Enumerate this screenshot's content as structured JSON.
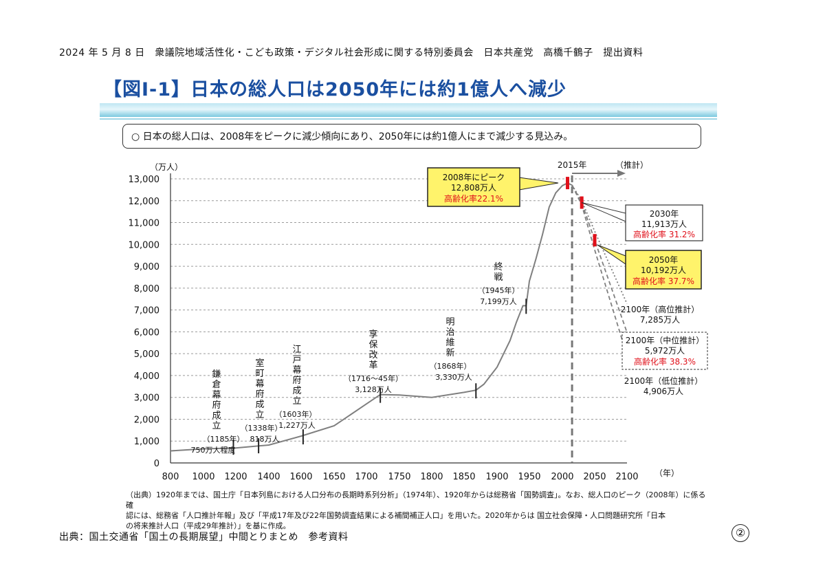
{
  "header": "2024 年 5 月 8 日　衆議院地域活性化・こども政策・デジタル社会形成に関する特別委員会　日本共産党　高橋千鶴子　提出資料",
  "title": "【図Ⅰ-1】日本の総人口は2050年には約1億人へ減少",
  "summary": "○ 日本の総人口は、2008年をピークに減少傾向にあり、2050年には約1億人にまで減少する見込み。",
  "source_note": [
    "（出典）1920年までは、国土庁「日本列島における人口分布の長期時系列分析」（1974年）、1920年からは総務省「国勢調査」。なお、総人口のピーク（2008年）に係る確",
    "認には、総務省「人口推計年報」及び「平成17年及び22年国勢調査結果による補間補正人口」を用いた。2020年からは 国立社会保障・人口問題研究所「日本",
    "の将来推計人口（平成29年推計）」を基に作成。"
  ],
  "footer": "出典：国土交通省「国土の長期展望」中間とりまとめ　参考資料",
  "page_number": "②",
  "chart_data": {
    "type": "line",
    "title": "",
    "ylabel": "（万人）",
    "xlabel": "（年）",
    "xlim": [
      800,
      2100
    ],
    "ylim": [
      0,
      13000
    ],
    "x_ticks": [
      800,
      1000,
      1200,
      1400,
      1600,
      1650,
      1700,
      1750,
      1800,
      1850,
      1900,
      1950,
      2000,
      2050,
      2100
    ],
    "x_tick_labels": [
      "800",
      "1000",
      "1200",
      "1400",
      "1600",
      "1650",
      "1700",
      "1750",
      "1800",
      "1850",
      "1900",
      "1950",
      "2000",
      "2050",
      "2100"
    ],
    "y_ticks": [
      0,
      1000,
      2000,
      3000,
      4000,
      5000,
      6000,
      7000,
      8000,
      9000,
      10000,
      11000,
      12000,
      13000
    ],
    "y_tick_labels": [
      "0",
      "1,000",
      "2,000",
      "3,000",
      "4,000",
      "5,000",
      "6,000",
      "7,000",
      "8,000",
      "9,000",
      "10,000",
      "11,000",
      "12,000",
      "13,000"
    ],
    "forecast_start": 2015,
    "forecast_start_label": "2015年",
    "forecast_label": "（推計）",
    "series": [
      {
        "name": "総人口",
        "style": "solid",
        "x": [
          800,
          1000,
          1200,
          1400,
          1600,
          1650,
          1700,
          1721,
          1750,
          1800,
          1850,
          1868,
          1880,
          1900,
          1920,
          1930,
          1940,
          1945,
          1950,
          1960,
          1970,
          1980,
          1990,
          2000,
          2008,
          2015
        ],
        "y": [
          551,
          644,
          683,
          818,
          1227,
          1700,
          2700,
          3128,
          3110,
          3000,
          3230,
          3330,
          3600,
          4385,
          5596,
          6445,
          7193,
          7199,
          8320,
          9342,
          10467,
          11706,
          12361,
          12693,
          12808,
          12709
        ]
      },
      {
        "name": "高位推計",
        "style": "dotted",
        "x": [
          2015,
          2030,
          2050,
          2100
        ],
        "y": [
          12709,
          12000,
          10600,
          7285
        ]
      },
      {
        "name": "中位推計",
        "style": "dashed",
        "x": [
          2015,
          2030,
          2050,
          2100
        ],
        "y": [
          12709,
          11913,
          10192,
          5972
        ]
      },
      {
        "name": "低位推計",
        "style": "dashed",
        "x": [
          2015,
          2030,
          2050,
          2100
        ],
        "y": [
          12709,
          11800,
          9750,
          4906
        ]
      }
    ],
    "events": [
      {
        "year": 1185,
        "value": 750,
        "label": "鎌倉幕府成立",
        "date": "（1185年）",
        "pop": "750万人程度"
      },
      {
        "year": 1338,
        "value": 818,
        "label": "室町幕府成立",
        "date": "（1338年）",
        "pop": "818万人"
      },
      {
        "year": 1603,
        "value": 1227,
        "label": "江戸幕府成立",
        "date": "（1603年）",
        "pop": "1,227万人"
      },
      {
        "year": 1721,
        "value": 3128,
        "label": "享保改革",
        "date": "（1716～45年）",
        "pop": "3,128万人"
      },
      {
        "year": 1868,
        "value": 3330,
        "label": "明治維新",
        "date": "（1868年）",
        "pop": "3,330万人"
      },
      {
        "year": 1945,
        "value": 7199,
        "label": "終戦",
        "date": "（1945年）",
        "pop": "7,199万人"
      }
    ],
    "callouts": {
      "peak": {
        "line1": "2008年にピーク",
        "line2": "12,808万人",
        "line3": "高齢化率22.1%"
      },
      "y2030": {
        "line1": "2030年",
        "line2": "11,913万人",
        "line3": "高齢化率 31.2%"
      },
      "y2050": {
        "line1": "2050年",
        "line2": "10,192万人",
        "line3": "高齢化率 37.7%"
      },
      "high2100": {
        "line1": "2100年（高位推計）",
        "line2": "7,285万人"
      },
      "mid2100": {
        "line1": "2100年（中位推計）",
        "line2": "5,972万人",
        "line3": "高齢化率 38.3%"
      },
      "low2100": {
        "line1": "2100年（低位推計）",
        "line2": "4,906万人"
      }
    },
    "colors": {
      "line": "#7f7f7f",
      "highlight_box": "#fff36b",
      "marker": "#e0101a",
      "rate_text": "#e0101a"
    }
  }
}
